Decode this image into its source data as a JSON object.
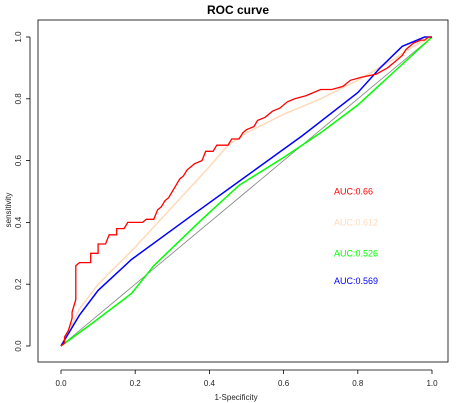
{
  "chart_data": {
    "type": "line",
    "title": "ROC curve",
    "xlabel": "1-Specificity",
    "ylabel": "sensitivity",
    "xlim": [
      0,
      1
    ],
    "ylim": [
      0,
      1
    ],
    "x_ticks": [
      "0.0",
      "0.2",
      "0.4",
      "0.6",
      "0.8",
      "1.0"
    ],
    "y_ticks": [
      "0.0",
      "0.2",
      "0.4",
      "0.6",
      "0.8",
      "1.0"
    ],
    "grid": false,
    "reference_line": {
      "points": [
        [
          0,
          0
        ],
        [
          1,
          1
        ]
      ],
      "color": "#808080"
    },
    "series": [
      {
        "color": "#ff0000",
        "auc_label": "AUC:0.66",
        "style": "step",
        "points": [
          [
            0,
            0
          ],
          [
            0.01,
            0.01
          ],
          [
            0.01,
            0.03
          ],
          [
            0.02,
            0.05
          ],
          [
            0.03,
            0.09
          ],
          [
            0.03,
            0.11
          ],
          [
            0.04,
            0.15
          ],
          [
            0.04,
            0.26
          ],
          [
            0.05,
            0.27
          ],
          [
            0.08,
            0.27
          ],
          [
            0.08,
            0.3
          ],
          [
            0.1,
            0.3
          ],
          [
            0.1,
            0.33
          ],
          [
            0.12,
            0.33
          ],
          [
            0.13,
            0.36
          ],
          [
            0.15,
            0.36
          ],
          [
            0.15,
            0.38
          ],
          [
            0.17,
            0.38
          ],
          [
            0.18,
            0.4
          ],
          [
            0.22,
            0.4
          ],
          [
            0.23,
            0.41
          ],
          [
            0.25,
            0.41
          ],
          [
            0.26,
            0.44
          ],
          [
            0.27,
            0.45
          ],
          [
            0.28,
            0.47
          ],
          [
            0.29,
            0.48
          ],
          [
            0.3,
            0.5
          ],
          [
            0.31,
            0.52
          ],
          [
            0.32,
            0.54
          ],
          [
            0.33,
            0.55
          ],
          [
            0.34,
            0.57
          ],
          [
            0.36,
            0.59
          ],
          [
            0.38,
            0.6
          ],
          [
            0.39,
            0.63
          ],
          [
            0.41,
            0.63
          ],
          [
            0.42,
            0.65
          ],
          [
            0.45,
            0.65
          ],
          [
            0.46,
            0.67
          ],
          [
            0.48,
            0.67
          ],
          [
            0.49,
            0.69
          ],
          [
            0.5,
            0.7
          ],
          [
            0.52,
            0.71
          ],
          [
            0.53,
            0.73
          ],
          [
            0.55,
            0.74
          ],
          [
            0.57,
            0.76
          ],
          [
            0.59,
            0.77
          ],
          [
            0.61,
            0.79
          ],
          [
            0.63,
            0.8
          ],
          [
            0.66,
            0.81
          ],
          [
            0.68,
            0.82
          ],
          [
            0.7,
            0.83
          ],
          [
            0.73,
            0.83
          ],
          [
            0.76,
            0.84
          ],
          [
            0.78,
            0.86
          ],
          [
            0.81,
            0.87
          ],
          [
            0.85,
            0.88
          ],
          [
            0.88,
            0.9
          ],
          [
            0.9,
            0.92
          ],
          [
            0.92,
            0.94
          ],
          [
            0.93,
            0.96
          ],
          [
            0.95,
            0.98
          ],
          [
            0.97,
            0.99
          ],
          [
            0.98,
            0.99
          ],
          [
            0.99,
            1.0
          ],
          [
            1.0,
            1.0
          ]
        ]
      },
      {
        "color": "#ffdab9",
        "auc_label": "AUC:0.612",
        "style": "line",
        "points": [
          [
            0,
            0
          ],
          [
            0.01,
            0.03
          ],
          [
            0.03,
            0.07
          ],
          [
            0.05,
            0.12
          ],
          [
            0.1,
            0.2
          ],
          [
            0.2,
            0.32
          ],
          [
            0.3,
            0.45
          ],
          [
            0.4,
            0.58
          ],
          [
            0.45,
            0.65
          ],
          [
            0.5,
            0.69
          ],
          [
            0.6,
            0.75
          ],
          [
            0.7,
            0.8
          ],
          [
            0.8,
            0.86
          ],
          [
            0.9,
            0.93
          ],
          [
            0.95,
            0.97
          ],
          [
            1.0,
            1.0
          ]
        ]
      },
      {
        "color": "#00ff00",
        "auc_label": "AUC:0.526",
        "style": "line",
        "points": [
          [
            0,
            0
          ],
          [
            0.08,
            0.07
          ],
          [
            0.19,
            0.17
          ],
          [
            0.25,
            0.26
          ],
          [
            0.38,
            0.41
          ],
          [
            0.48,
            0.52
          ],
          [
            0.6,
            0.61
          ],
          [
            0.7,
            0.69
          ],
          [
            0.8,
            0.78
          ],
          [
            0.9,
            0.89
          ],
          [
            1.0,
            1.0
          ]
        ]
      },
      {
        "color": "#0000ff",
        "auc_label": "AUC:0.569",
        "style": "line",
        "points": [
          [
            0,
            0
          ],
          [
            0.02,
            0.04
          ],
          [
            0.05,
            0.1
          ],
          [
            0.1,
            0.18
          ],
          [
            0.19,
            0.28
          ],
          [
            0.35,
            0.42
          ],
          [
            0.5,
            0.55
          ],
          [
            0.65,
            0.68
          ],
          [
            0.8,
            0.82
          ],
          [
            0.86,
            0.9
          ],
          [
            0.92,
            0.97
          ],
          [
            0.98,
            1.0
          ],
          [
            1.0,
            1.0
          ]
        ]
      }
    ]
  }
}
